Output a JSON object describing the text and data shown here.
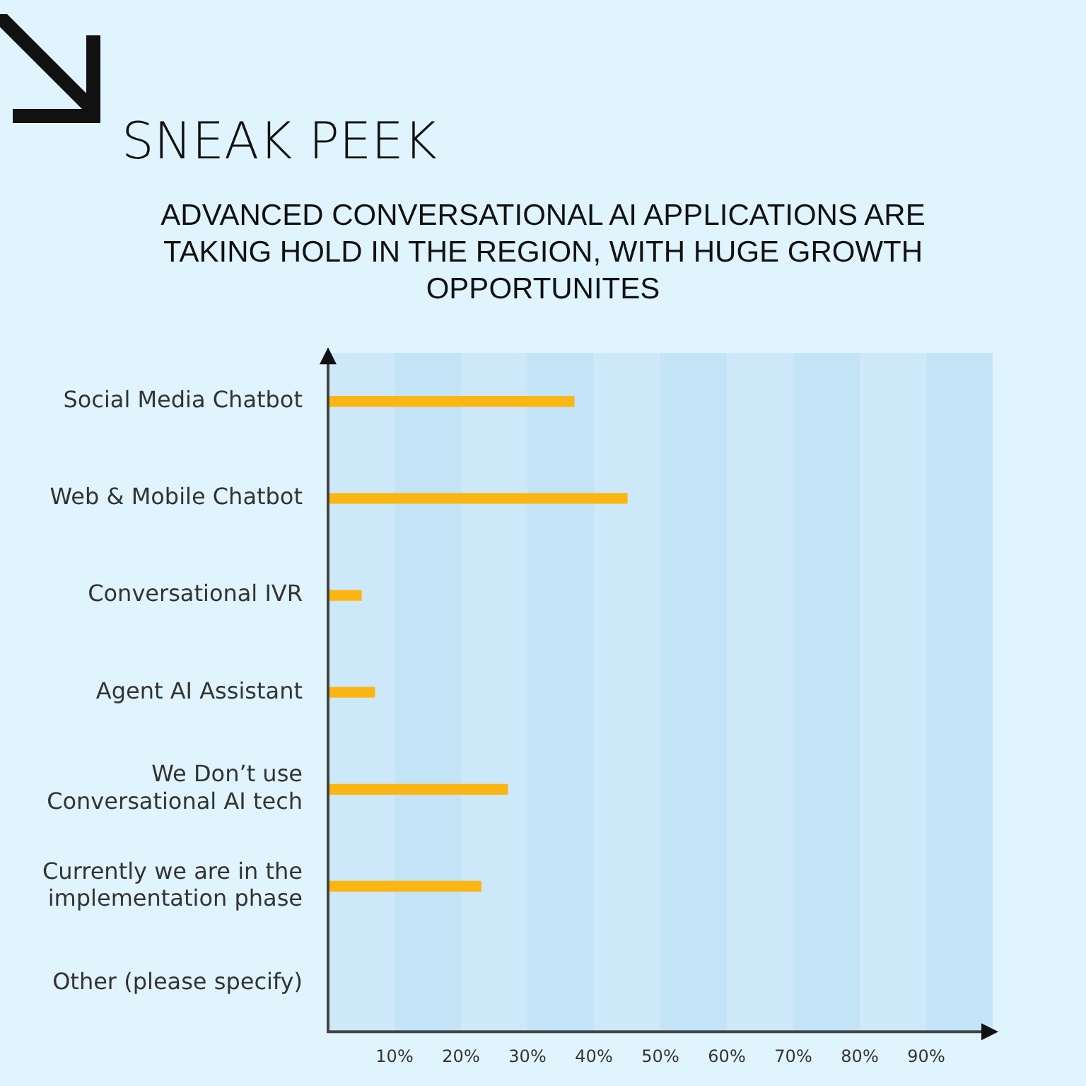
{
  "chart_data": {
    "type": "bar",
    "orientation": "horizontal",
    "title": "SNEAK PEEK",
    "subtitle": "ADVANCED CONVERSATIONAL AI APPLICATIONS ARE TAKING HOLD IN THE REGION, WITH HUGE GROWTH OPPORTUNITES",
    "categories": [
      "Social Media Chatbot",
      "Web & Mobile Chatbot",
      "Conversational IVR",
      "Agent AI Assistant",
      "We Don’t use Conversational AI tech",
      "Currently we are in the implementation phase",
      "Other (please specify)"
    ],
    "values": [
      37,
      45,
      5,
      7,
      27,
      23,
      0
    ],
    "color": "#fbb614",
    "xlim": [
      0,
      100
    ],
    "xticks": [
      {
        "value": 10,
        "label": "10%"
      },
      {
        "value": 20,
        "label": "20%"
      },
      {
        "value": 30,
        "label": "30%"
      },
      {
        "value": 40,
        "label": "40%"
      },
      {
        "value": 50,
        "label": "50%"
      },
      {
        "value": 60,
        "label": "60%"
      },
      {
        "value": 70,
        "label": "70%"
      },
      {
        "value": 80,
        "label": "80%"
      },
      {
        "value": 90,
        "label": "90%"
      }
    ],
    "bands": [
      {
        "axis": "x",
        "from": 0,
        "to": 10,
        "color": "#cde9f9"
      },
      {
        "axis": "x",
        "from": 10,
        "to": 20,
        "color": "#c2e4f6"
      },
      {
        "axis": "x",
        "from": 20,
        "to": 30,
        "color": "#cde9f9"
      },
      {
        "axis": "x",
        "from": 30,
        "to": 40,
        "color": "#c2e4f6"
      },
      {
        "axis": "x",
        "from": 40,
        "to": 50,
        "color": "#cde9f9"
      },
      {
        "axis": "x",
        "from": 50,
        "to": 60,
        "color": "#c2e4f6"
      },
      {
        "axis": "x",
        "from": 60,
        "to": 70,
        "color": "#cde9f9"
      },
      {
        "axis": "x",
        "from": 70,
        "to": 80,
        "color": "#c2e4f6"
      },
      {
        "axis": "x",
        "from": 80,
        "to": 90,
        "color": "#cde9f9"
      },
      {
        "axis": "x",
        "from": 90,
        "to": 100,
        "color": "#c2e4f6"
      }
    ]
  }
}
